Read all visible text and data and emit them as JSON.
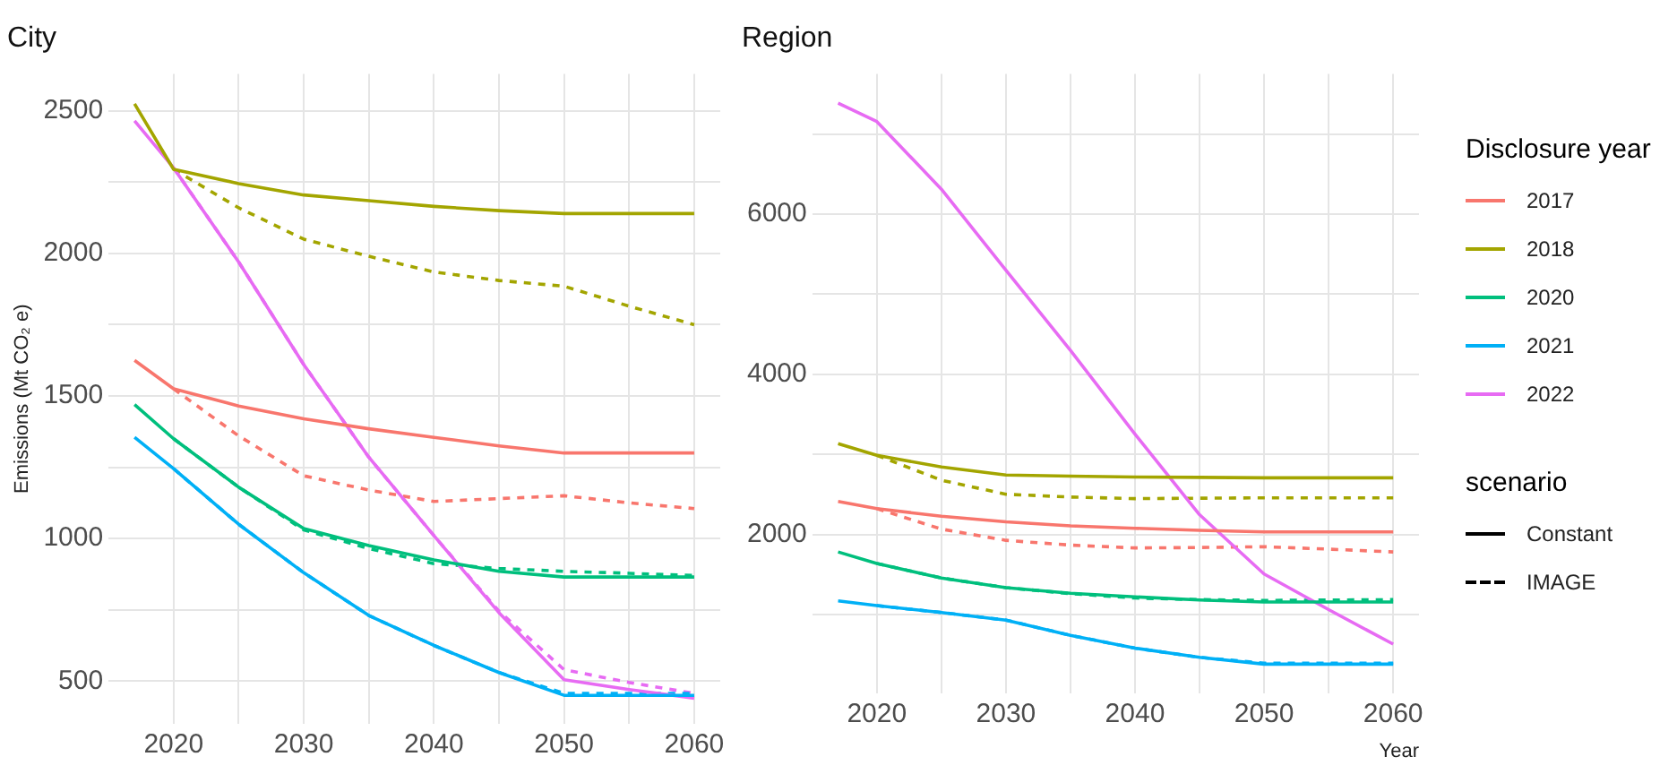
{
  "chart_data": [
    {
      "type": "line",
      "title": "City",
      "ylabel": "Emissions (Mt CO₂ e)",
      "x": [
        2017,
        2020,
        2025,
        2030,
        2035,
        2040,
        2045,
        2050,
        2055,
        2060
      ],
      "xlim": [
        2015,
        2062
      ],
      "xticks": [
        2020,
        {
          "value": 2025,
          "label": null
        },
        2030,
        {
          "value": 2035,
          "label": null
        },
        2040,
        {
          "value": 2045,
          "label": null
        },
        2050,
        {
          "value": 2055,
          "label": null
        },
        2060
      ],
      "ylim": [
        350,
        2630
      ],
      "yticks": [
        500,
        {
          "value": 750,
          "label": null
        },
        1000,
        {
          "value": 1250,
          "label": null
        },
        1500,
        {
          "value": 1750,
          "label": null
        },
        2000,
        {
          "value": 2250,
          "label": null
        },
        2500
      ],
      "grid": true,
      "marker": "none",
      "series": [
        {
          "color": "#f8766d",
          "line_style": "solid",
          "values": [
            1625,
            1525,
            1465,
            1420,
            1385,
            1355,
            1325,
            1300,
            1300,
            1300
          ]
        },
        {
          "color": "#a3a500",
          "line_style": "solid",
          "values": [
            2525,
            2295,
            2245,
            2205,
            2185,
            2165,
            2150,
            2140,
            2140,
            2140
          ]
        },
        {
          "color": "#00bf7d",
          "line_style": "solid",
          "values": [
            1470,
            1350,
            1180,
            1035,
            975,
            925,
            885,
            865,
            865,
            865
          ]
        },
        {
          "color": "#00b0f6",
          "line_style": "solid",
          "values": [
            1355,
            1245,
            1050,
            880,
            730,
            625,
            530,
            450,
            450,
            450
          ]
        },
        {
          "color": "#e76bf3",
          "line_style": "solid",
          "values": [
            2465,
            2300,
            1970,
            1610,
            1285,
            1010,
            740,
            505,
            470,
            440
          ]
        },
        {
          "color": "#f8766d",
          "line_style": "dashed",
          "values": [
            null,
            1525,
            1360,
            1220,
            1170,
            1130,
            1140,
            1150,
            1125,
            1105
          ]
        },
        {
          "color": "#a3a500",
          "line_style": "dashed",
          "values": [
            null,
            2295,
            2160,
            2050,
            1990,
            1935,
            1905,
            1885,
            1815,
            1750
          ]
        },
        {
          "color": "#00bf7d",
          "line_style": "dashed",
          "values": [
            null,
            1350,
            1180,
            1030,
            965,
            912,
            895,
            885,
            878,
            870
          ]
        },
        {
          "color": "#00b0f6",
          "line_style": "dashed",
          "values": [
            null,
            1245,
            1050,
            880,
            730,
            625,
            530,
            457,
            457,
            457
          ]
        },
        {
          "color": "#e76bf3",
          "line_style": "dashed",
          "values": [
            null,
            2300,
            1970,
            1610,
            1285,
            1010,
            745,
            540,
            495,
            457
          ]
        }
      ]
    },
    {
      "type": "line",
      "title": "Region",
      "xlabel": "Year",
      "x": [
        2017,
        2020,
        2025,
        2030,
        2035,
        2040,
        2045,
        2050,
        2055,
        2060
      ],
      "xlim": [
        2015,
        2062
      ],
      "xticks": [
        2020,
        {
          "value": 2025,
          "label": null
        },
        2030,
        {
          "value": 2035,
          "label": null
        },
        2040,
        {
          "value": 2045,
          "label": null
        },
        2050,
        {
          "value": 2055,
          "label": null
        },
        2060
      ],
      "ylim": [
        25,
        7750
      ],
      "yticks": [
        {
          "value": 1000,
          "label": null
        },
        2000,
        {
          "value": 3000,
          "label": null
        },
        4000,
        {
          "value": 5000,
          "label": null
        },
        6000,
        {
          "value": 7000,
          "label": null
        }
      ],
      "grid": true,
      "marker": "none",
      "legend": "right",
      "legend_title": "Disclosure year",
      "annotations": [
        "scenario",
        "Constant",
        "IMAGE"
      ],
      "series": [
        {
          "name": "2017",
          "color": "#f8766d",
          "line_style": "solid",
          "values": [
            2415,
            2325,
            2230,
            2160,
            2110,
            2080,
            2055,
            2035,
            2035,
            2035
          ]
        },
        {
          "name": "2018",
          "color": "#a3a500",
          "line_style": "solid",
          "values": [
            3135,
            2990,
            2845,
            2745,
            2730,
            2720,
            2715,
            2710,
            2710,
            2710
          ]
        },
        {
          "name": "2020",
          "color": "#00bf7d",
          "line_style": "solid",
          "values": [
            1785,
            1640,
            1460,
            1340,
            1270,
            1225,
            1185,
            1160,
            1160,
            1160
          ]
        },
        {
          "name": "2021",
          "color": "#00b0f6",
          "line_style": "solid",
          "values": [
            1175,
            1115,
            1030,
            935,
            745,
            585,
            470,
            385,
            385,
            385
          ]
        },
        {
          "name": "2022",
          "color": "#e76bf3",
          "line_style": "solid",
          "values": [
            7385,
            7155,
            6310,
            5300,
            4300,
            3255,
            2250,
            1510,
            1065,
            635
          ]
        },
        {
          "color": "#f8766d",
          "line_style": "dashed",
          "values": [
            null,
            2325,
            2070,
            1930,
            1870,
            1835,
            1840,
            1850,
            1820,
            1785
          ]
        },
        {
          "color": "#a3a500",
          "line_style": "dashed",
          "values": [
            null,
            2990,
            2680,
            2505,
            2470,
            2450,
            2455,
            2460,
            2460,
            2460
          ]
        },
        {
          "color": "#00bf7d",
          "line_style": "dashed",
          "values": [
            null,
            1640,
            1460,
            1340,
            1265,
            1210,
            1190,
            1180,
            1185,
            1190
          ]
        },
        {
          "color": "#00b0f6",
          "line_style": "dashed",
          "values": [
            null,
            1115,
            1030,
            935,
            745,
            585,
            470,
            398,
            398,
            398
          ]
        }
      ]
    }
  ]
}
